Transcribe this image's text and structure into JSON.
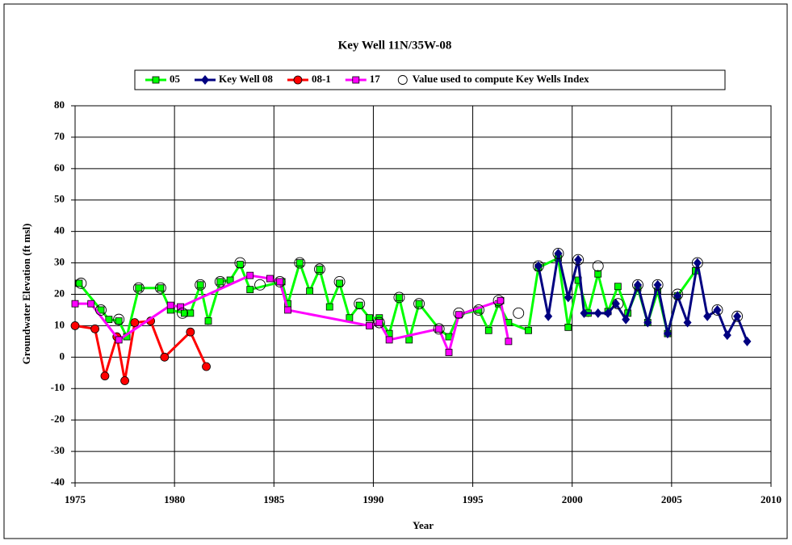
{
  "chart_data": {
    "type": "line",
    "title": "Key Well 11N/35W-08",
    "xlabel": "Year",
    "ylabel": "Groundwater Elevation (ft msl)",
    "xlim": [
      1975,
      2010
    ],
    "xticks": [
      1975,
      1980,
      1985,
      1990,
      1995,
      2000,
      2005,
      2010
    ],
    "ylim": [
      -40,
      80
    ],
    "yticks": [
      -40,
      -30,
      -20,
      -10,
      0,
      10,
      20,
      30,
      40,
      50,
      60,
      70,
      80
    ],
    "grid": true,
    "legend": "top",
    "series": [
      {
        "name": "05",
        "color": "#00ff00",
        "marker": "square",
        "line": true,
        "x": [
          1975.2,
          1976.3,
          1976.7,
          1977.2,
          1977.6,
          1978.2,
          1979.3,
          1979.8,
          1980.5,
          1980.8,
          1981.3,
          1981.7,
          1982.3,
          1982.8,
          1983.3,
          1983.8,
          1985.4,
          1985.7,
          1986.3,
          1986.8,
          1987.3,
          1987.8,
          1988.3,
          1988.8,
          1989.3,
          1989.8,
          1990.3,
          1990.8,
          1991.3,
          1991.8,
          1992.3,
          1993.3,
          1993.8,
          1994.3,
          1995.3,
          1995.8,
          1996.3,
          1996.8,
          1997.8,
          1998.3,
          1999.3,
          1999.8,
          2000.3,
          2000.8,
          2001.3,
          2001.8,
          2002.3,
          2002.8,
          2003.3,
          2003.8,
          2004.3,
          2004.8,
          2005.3,
          2006.2
        ],
        "values": [
          23.5,
          15,
          12,
          11.5,
          6.5,
          22,
          22,
          15,
          14,
          14,
          23,
          11.5,
          24,
          24.5,
          29.5,
          21.5,
          24,
          17,
          30,
          21,
          28,
          16,
          23.5,
          12.5,
          16.5,
          12.5,
          12.5,
          7.5,
          19,
          5.5,
          17,
          9,
          6.5,
          13.5,
          15,
          8.5,
          17,
          11,
          8.5,
          28.5,
          31.5,
          9.5,
          24.5,
          14,
          26.5,
          14.5,
          22.5,
          14,
          22,
          11,
          21,
          7.5,
          19.5,
          27.5
        ]
      },
      {
        "name": "Key Well 08",
        "color": "#000080",
        "marker": "diamond",
        "line": true,
        "x": [
          1998.3,
          1998.8,
          1999.3,
          1999.8,
          2000.3,
          2000.6,
          2001.3,
          2001.8,
          2002.2,
          2002.7,
          2003.3,
          2003.8,
          2004.3,
          2004.8,
          2005.3,
          2005.8,
          2006.3,
          2006.8,
          2007.3,
          2007.8,
          2008.3,
          2008.8
        ],
        "values": [
          29,
          13,
          33,
          19,
          31,
          14,
          14,
          14,
          17,
          12,
          23,
          11,
          23,
          7.5,
          19.5,
          11,
          30,
          13,
          15,
          7,
          13,
          5
        ]
      },
      {
        "name": "08-1",
        "color": "#ff0000",
        "marker": "circle",
        "line": true,
        "x": [
          1975,
          1976,
          1976.5,
          1977.1,
          1977.5,
          1978,
          1978.8,
          1979.5,
          1980.8,
          1981.6
        ],
        "values": [
          10,
          9,
          -6,
          6.5,
          -7.5,
          11,
          11.5,
          0,
          8,
          -3
        ]
      },
      {
        "name": "17",
        "color": "#ff00ff",
        "marker": "square",
        "line": true,
        "x": [
          1975,
          1975.8,
          1977.2,
          1979.8,
          1980.3,
          1983.8,
          1984.8,
          1985.3,
          1985.7,
          1989.8,
          1990.3,
          1990.8,
          1993.3,
          1993.8,
          1994.3,
          1996.4,
          1996.8
        ],
        "values": [
          17,
          17,
          5.5,
          16.5,
          16,
          26,
          25,
          24,
          15,
          10,
          11,
          5.5,
          9,
          1.5,
          13.5,
          18,
          5
        ]
      },
      {
        "name": "Value used to compute Key Wells Index",
        "color": "#000000",
        "marker": "open-circle",
        "line": false,
        "x": [
          1975.3,
          1976.3,
          1977.2,
          1978.2,
          1979.3,
          1980.4,
          1981.3,
          1982.3,
          1983.3,
          1984.3,
          1985.3,
          1986.3,
          1987.3,
          1988.3,
          1989.3,
          1990.3,
          1991.3,
          1992.3,
          1993.3,
          1994.3,
          1995.3,
          1996.3,
          1997.3,
          1998.3,
          1999.3,
          2000.3,
          2001.3,
          2002.3,
          2003.3,
          2004.3,
          2005.3,
          2006.3,
          2007.3,
          2008.3
        ],
        "values": [
          23.5,
          15,
          12,
          22,
          22,
          14,
          23,
          24,
          30,
          23,
          24,
          30,
          28,
          24,
          17,
          11,
          19,
          17,
          9,
          14,
          15,
          18,
          14,
          29,
          33,
          31,
          29,
          17,
          23,
          23,
          20,
          30,
          15,
          13
        ]
      }
    ]
  }
}
